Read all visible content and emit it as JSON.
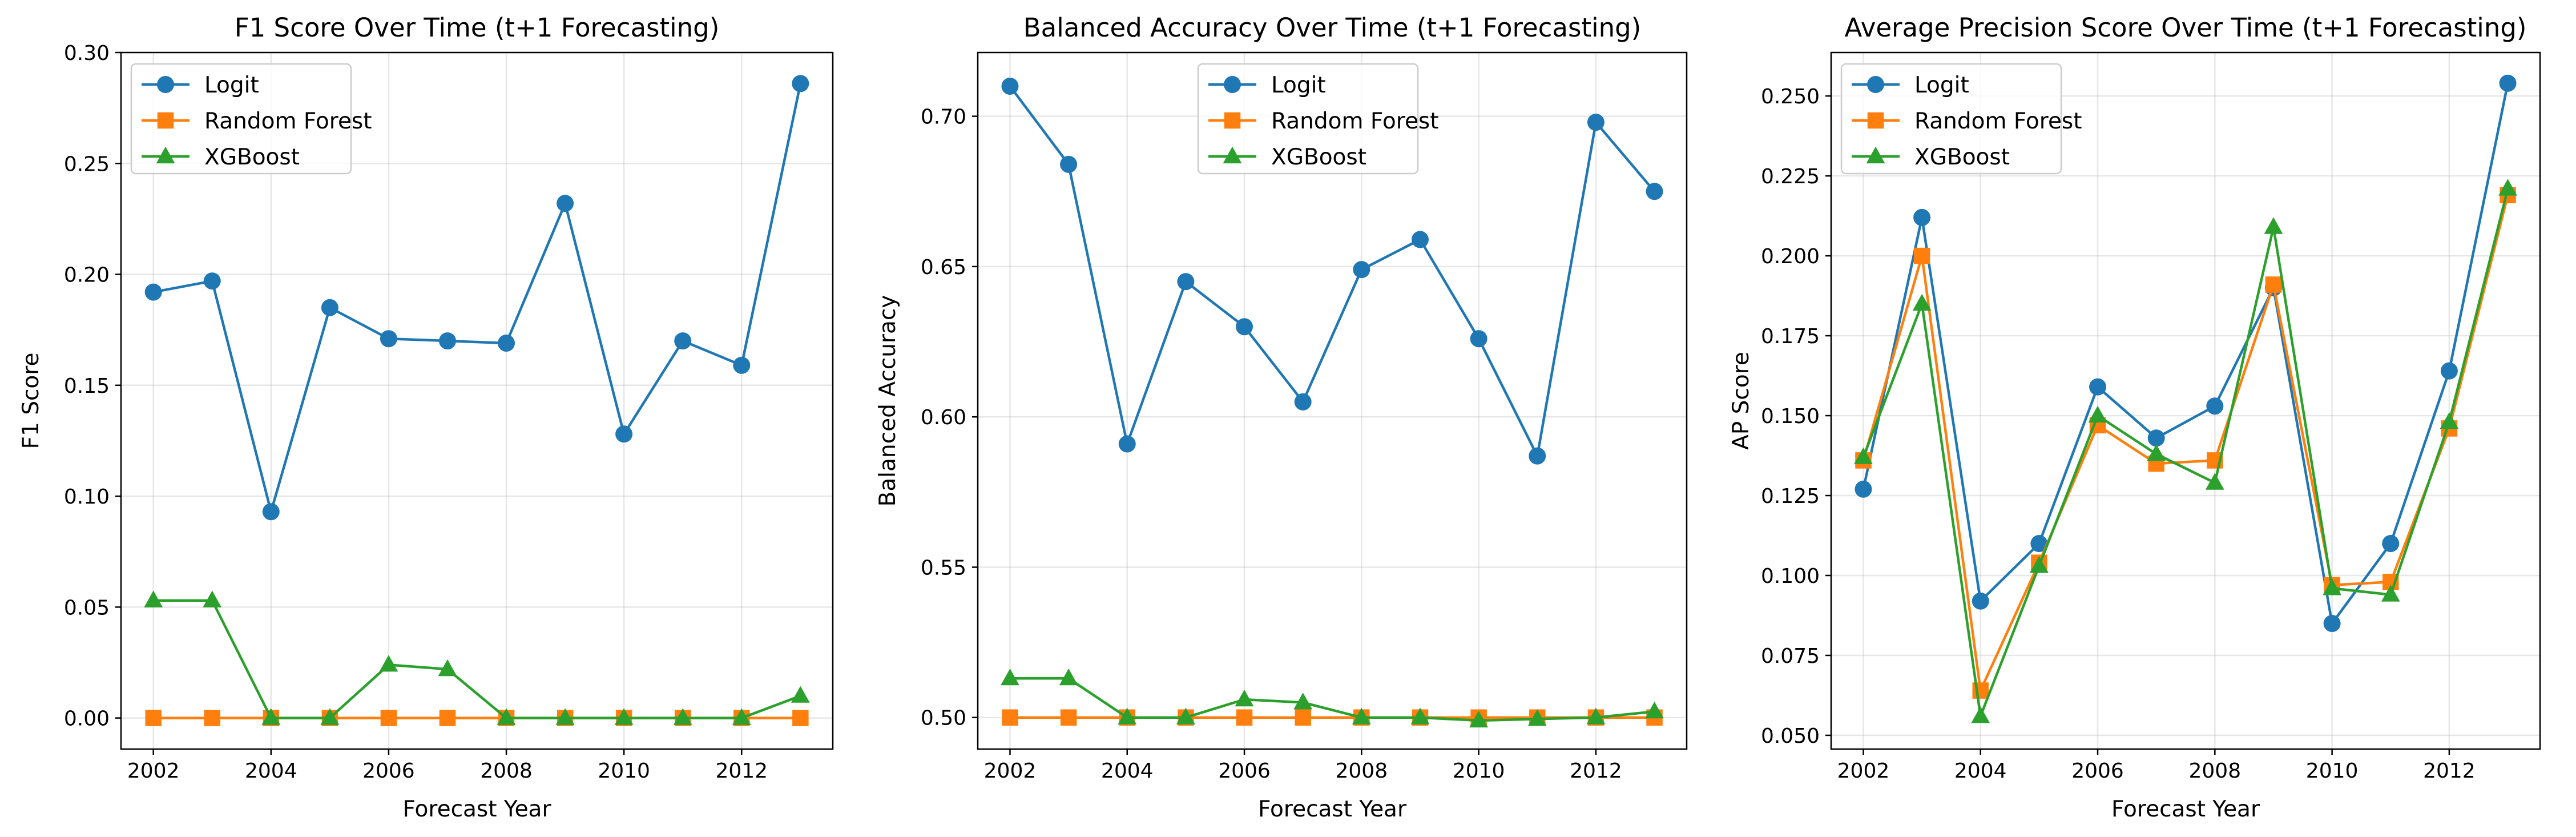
{
  "chart_data": [
    {
      "type": "line",
      "title": "F1 Score Over Time (t+1 Forecasting)",
      "xlabel": "Forecast Year",
      "ylabel": "F1 Score",
      "x": [
        2002,
        2003,
        2004,
        2005,
        2006,
        2007,
        2008,
        2009,
        2010,
        2011,
        2012,
        2013
      ],
      "xlim": [
        2001.45,
        2013.55
      ],
      "ylim": [
        -0.014,
        0.3
      ],
      "xticks": [
        2002,
        2004,
        2006,
        2008,
        2010,
        2012
      ],
      "yticks": [
        0.0,
        0.05,
        0.1,
        0.15,
        0.2,
        0.25,
        0.3
      ],
      "ytick_labels": [
        "0.00",
        "0.05",
        "0.10",
        "0.15",
        "0.20",
        "0.25",
        "0.30"
      ],
      "grid": true,
      "legend_position": "top-left",
      "series": [
        {
          "name": "Logit",
          "marker": "circle",
          "color": "#1f77b4",
          "values": [
            0.192,
            0.197,
            0.093,
            0.185,
            0.171,
            0.17,
            0.169,
            0.232,
            0.128,
            0.17,
            0.159,
            0.286
          ]
        },
        {
          "name": "Random Forest",
          "marker": "square",
          "color": "#ff7f0e",
          "values": [
            0.0,
            0.0,
            0.0,
            0.0,
            0.0,
            0.0,
            0.0,
            0.0,
            0.0,
            0.0,
            0.0,
            0.0
          ]
        },
        {
          "name": "XGBoost",
          "marker": "triangle",
          "color": "#2ca02c",
          "values": [
            0.053,
            0.053,
            0.0,
            0.0,
            0.024,
            0.022,
            0.0,
            0.0,
            0.0,
            0.0,
            0.0,
            0.01
          ]
        }
      ]
    },
    {
      "type": "line",
      "title": "Balanced Accuracy Over Time (t+1 Forecasting)",
      "xlabel": "Forecast Year",
      "ylabel": "Balanced Accuracy",
      "x": [
        2002,
        2003,
        2004,
        2005,
        2006,
        2007,
        2008,
        2009,
        2010,
        2011,
        2012,
        2013
      ],
      "xlim": [
        2001.45,
        2013.55
      ],
      "ylim": [
        0.4895,
        0.7212
      ],
      "xticks": [
        2002,
        2004,
        2006,
        2008,
        2010,
        2012
      ],
      "yticks": [
        0.5,
        0.55,
        0.6,
        0.65,
        0.7
      ],
      "ytick_labels": [
        "0.50",
        "0.55",
        "0.60",
        "0.65",
        "0.70"
      ],
      "grid": true,
      "legend_position": "top-center",
      "series": [
        {
          "name": "Logit",
          "marker": "circle",
          "color": "#1f77b4",
          "values": [
            0.71,
            0.684,
            0.591,
            0.645,
            0.63,
            0.605,
            0.649,
            0.659,
            0.626,
            0.587,
            0.698,
            0.675
          ]
        },
        {
          "name": "Random Forest",
          "marker": "square",
          "color": "#ff7f0e",
          "values": [
            0.5,
            0.5,
            0.5,
            0.5,
            0.5,
            0.5,
            0.5,
            0.5,
            0.5,
            0.5,
            0.5,
            0.5
          ]
        },
        {
          "name": "XGBoost",
          "marker": "triangle",
          "color": "#2ca02c",
          "values": [
            0.513,
            0.513,
            0.5,
            0.5,
            0.506,
            0.505,
            0.5,
            0.5,
            0.499,
            0.4995,
            0.5,
            0.502
          ]
        }
      ]
    },
    {
      "type": "line",
      "title": "Average Precision Score Over Time (t+1 Forecasting)",
      "xlabel": "Forecast Year",
      "ylabel": "AP Score",
      "x": [
        2002,
        2003,
        2004,
        2005,
        2006,
        2007,
        2008,
        2009,
        2010,
        2011,
        2012,
        2013
      ],
      "xlim": [
        2001.45,
        2013.55
      ],
      "ylim": [
        0.0457,
        0.2636
      ],
      "xticks": [
        2002,
        2004,
        2006,
        2008,
        2010,
        2012
      ],
      "yticks": [
        0.05,
        0.075,
        0.1,
        0.125,
        0.15,
        0.175,
        0.2,
        0.225,
        0.25
      ],
      "ytick_labels": [
        "0.050",
        "0.075",
        "0.100",
        "0.125",
        "0.150",
        "0.175",
        "0.200",
        "0.225",
        "0.250"
      ],
      "grid": true,
      "legend_position": "top-left",
      "series": [
        {
          "name": "Logit",
          "marker": "circle",
          "color": "#1f77b4",
          "values": [
            0.127,
            0.212,
            0.092,
            0.11,
            0.159,
            0.143,
            0.153,
            0.19,
            0.085,
            0.11,
            0.164,
            0.254
          ]
        },
        {
          "name": "Random Forest",
          "marker": "square",
          "color": "#ff7f0e",
          "values": [
            0.136,
            0.2,
            0.064,
            0.104,
            0.147,
            0.135,
            0.136,
            0.191,
            0.097,
            0.098,
            0.146,
            0.219
          ]
        },
        {
          "name": "XGBoost",
          "marker": "triangle",
          "color": "#2ca02c",
          "values": [
            0.137,
            0.185,
            0.056,
            0.103,
            0.15,
            0.138,
            0.129,
            0.209,
            0.096,
            0.094,
            0.148,
            0.221
          ]
        }
      ]
    }
  ]
}
